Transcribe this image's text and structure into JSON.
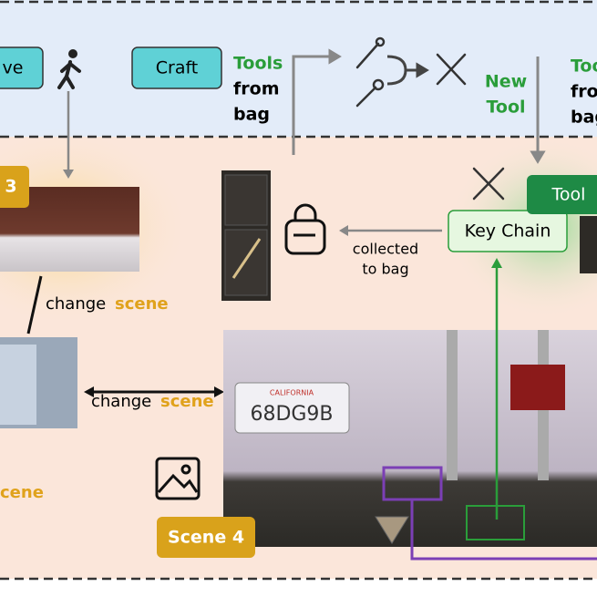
{
  "top": {
    "move": "ve",
    "craft": "Craft",
    "tools_from_bag": [
      "Tools",
      "from",
      "bag"
    ],
    "new_tool": [
      "New",
      "Tool"
    ],
    "right_cut": [
      "Too",
      "fro",
      "bag"
    ]
  },
  "scenes": {
    "scene3_badge": "3",
    "change_scene_1": [
      "change",
      "scene"
    ],
    "change_scene_2": [
      "change",
      "scene"
    ],
    "scene_cut": "cene",
    "scene4_badge": "Scene 4",
    "plate": "68DG9B",
    "plate_state": "CALIFORNIA"
  },
  "bag": {
    "collected": [
      "collected",
      "to bag"
    ],
    "key_chain": "Key Chain",
    "tool_badge": "Tool"
  }
}
